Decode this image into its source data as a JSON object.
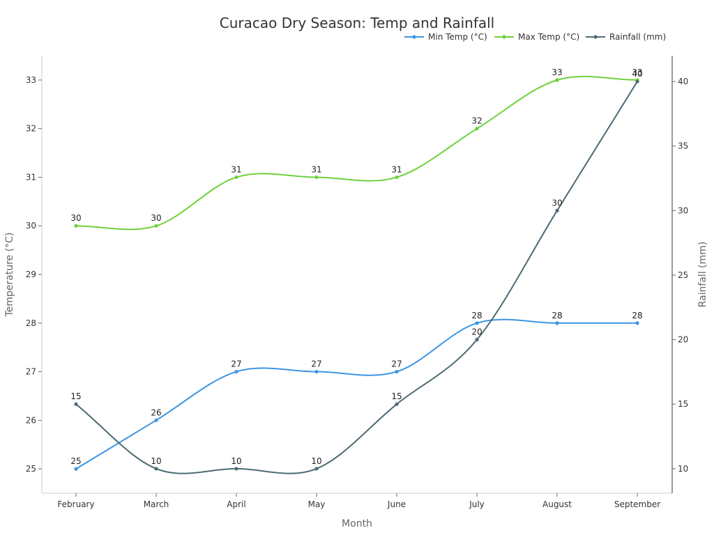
{
  "chart_data": {
    "type": "line",
    "title": "Curacao Dry Season: Temp and Rainfall",
    "xlabel": "Month",
    "ylabel_left": "Temperature (°C)",
    "ylabel_right": "Rainfall (mm)",
    "categories": [
      "February",
      "March",
      "April",
      "May",
      "June",
      "July",
      "August",
      "September"
    ],
    "ylim_left": [
      24.5,
      33.5
    ],
    "yticks_left": [
      25,
      26,
      27,
      28,
      29,
      30,
      31,
      32,
      33
    ],
    "ylim_right": [
      8.1,
      42.0
    ],
    "yticks_right": [
      10,
      15,
      20,
      25,
      30,
      35,
      40
    ],
    "legend_position": "top-right",
    "grid": false,
    "series": [
      {
        "name": "Min Temp (°C)",
        "axis": "left",
        "color": "#3b95e3",
        "values": [
          25,
          26,
          27,
          27,
          27,
          28,
          28,
          28
        ]
      },
      {
        "name": "Max Temp (°C)",
        "axis": "left",
        "color": "#6dd23a",
        "values": [
          30,
          30,
          31,
          31,
          31,
          32,
          33,
          33
        ]
      },
      {
        "name": "Rainfall (mm)",
        "axis": "right",
        "color": "#4d6a73",
        "values": [
          15,
          10,
          10,
          10,
          15,
          20,
          30,
          40
        ]
      }
    ]
  }
}
